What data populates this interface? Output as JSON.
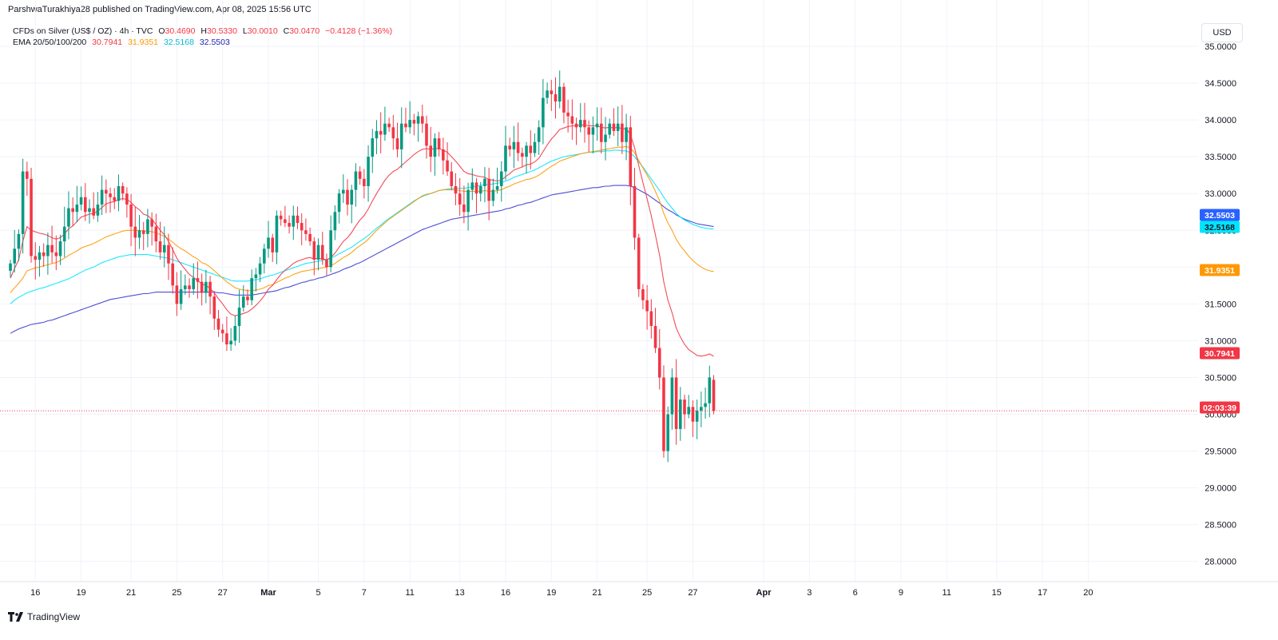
{
  "header": {
    "published_line": "ParshwaTurakhiya28 published on TradingView.com, Apr 08, 2025 15:56 UTC"
  },
  "legend": {
    "symbol": "CFDs on Silver (US$ / OZ) · 4h · TVC",
    "o_label": "O",
    "o_value": "30.4690",
    "h_label": "H",
    "h_value": "30.5330",
    "l_label": "L",
    "l_value": "30.0010",
    "c_label": "C",
    "c_value": "30.0470",
    "change": "−0.4128 (−1.36%)",
    "ema_label": "EMA 20/50/100/200",
    "ema20": "30.7941",
    "ema50": "31.9351",
    "ema100": "32.5168",
    "ema200": "32.5503"
  },
  "currency": "USD",
  "brand": {
    "name": "TradingView"
  },
  "colors": {
    "up": "#089981",
    "down": "#f23645",
    "ema20": "#f23645",
    "ema50": "#ff9800",
    "ema100": "#00e5ff",
    "ema200": "#3b3bd1",
    "grid": "#f0f3fa",
    "text": "#131722"
  },
  "chart_data": {
    "type": "candlestick",
    "title": "CFDs on Silver (US$ / OZ) · 4h · TVC",
    "ylim": [
      27.8,
      35.1
    ],
    "y_ticks": [
      "35.0000",
      "34.5000",
      "34.0000",
      "33.5000",
      "33.0000",
      "32.5000",
      "32.0000",
      "31.5000",
      "31.0000",
      "30.5000",
      "30.0000",
      "29.5000",
      "29.0000",
      "28.5000",
      "28.0000"
    ],
    "x_ticks": [
      {
        "label": "16",
        "i": 6
      },
      {
        "label": "19",
        "i": 17
      },
      {
        "label": "21",
        "i": 29
      },
      {
        "label": "25",
        "i": 40
      },
      {
        "label": "27",
        "i": 51
      },
      {
        "label": "Mar",
        "i": 62
      },
      {
        "label": "5",
        "i": 74
      },
      {
        "label": "7",
        "i": 85
      },
      {
        "label": "11",
        "i": 96
      },
      {
        "label": "13",
        "i": 108
      },
      {
        "label": "16",
        "i": 119
      },
      {
        "label": "19",
        "i": 130
      },
      {
        "label": "21",
        "i": 141
      },
      {
        "label": "25",
        "i": 153
      },
      {
        "label": "27",
        "i": 164
      },
      {
        "label": "Apr",
        "i": 181
      },
      {
        "label": "3",
        "i": 192
      },
      {
        "label": "6",
        "i": 203
      },
      {
        "label": "9",
        "i": 214
      },
      {
        "label": "11",
        "i": 225
      },
      {
        "label": "15",
        "i": 237
      },
      {
        "label": "17",
        "i": 248
      },
      {
        "label": "20",
        "i": 259
      }
    ],
    "price_scale_badges": [
      {
        "label": "32.5503",
        "value": 32.5503,
        "color": "#2962ff"
      },
      {
        "label": "32.5168",
        "value": 32.5168,
        "color": "#00e5ff"
      },
      {
        "label": "31.9351",
        "value": 31.9351,
        "color": "#ff9800"
      },
      {
        "label": "30.7941",
        "value": 30.7941,
        "color": "#f23645"
      },
      {
        "label": "02:03:39",
        "value": 30.047,
        "color": "#f23645"
      }
    ],
    "last_price": 30.047,
    "series": [
      {
        "name": "Silver 4h OHLC",
        "kind": "ohlc"
      },
      {
        "name": "EMA 20",
        "kind": "line",
        "color": "#f23645"
      },
      {
        "name": "EMA 50",
        "kind": "line",
        "color": "#ff9800"
      },
      {
        "name": "EMA 100",
        "kind": "line",
        "color": "#00e5ff"
      },
      {
        "name": "EMA 200",
        "kind": "line",
        "color": "#3b3bd1"
      }
    ],
    "closes": [
      32.05,
      32.25,
      32.45,
      33.3,
      33.2,
      32.15,
      32.1,
      32.2,
      32.15,
      32.3,
      32.2,
      32.15,
      32.35,
      32.55,
      32.8,
      32.75,
      32.85,
      32.95,
      32.75,
      32.8,
      32.7,
      32.85,
      33.05,
      33.0,
      32.95,
      32.9,
      33.1,
      33.0,
      32.85,
      32.55,
      32.4,
      32.5,
      32.45,
      32.65,
      32.55,
      32.35,
      32.2,
      32.3,
      32.05,
      31.75,
      31.5,
      31.7,
      31.75,
      31.7,
      31.85,
      31.8,
      31.65,
      31.8,
      31.6,
      31.3,
      31.15,
      31.1,
      30.95,
      31.0,
      31.2,
      31.45,
      31.6,
      31.55,
      31.85,
      31.9,
      32.05,
      32.25,
      32.4,
      32.2,
      32.7,
      32.65,
      32.6,
      32.55,
      32.7,
      32.6,
      32.5,
      32.45,
      32.35,
      32.1,
      32.3,
      32.1,
      32.0,
      32.5,
      32.75,
      33.0,
      33.05,
      32.85,
      33.05,
      33.3,
      33.2,
      33.1,
      33.5,
      33.75,
      33.85,
      33.8,
      33.95,
      33.9,
      33.75,
      33.6,
      33.95,
      33.9,
      34.0,
      33.95,
      34.05,
      33.95,
      33.65,
      33.5,
      33.75,
      33.6,
      33.45,
      33.3,
      33.1,
      33.0,
      32.85,
      32.75,
      33.05,
      33.15,
      33.0,
      33.1,
      33.2,
      32.9,
      33.05,
      33.1,
      33.3,
      33.65,
      33.6,
      33.7,
      33.55,
      33.5,
      33.65,
      33.55,
      33.7,
      33.9,
      34.3,
      34.4,
      34.35,
      34.25,
      34.45,
      34.1,
      34.05,
      33.95,
      33.9,
      34.0,
      33.9,
      33.8,
      33.9,
      33.95,
      33.7,
      33.8,
      33.95,
      33.85,
      33.95,
      33.7,
      33.9,
      33.1,
      32.4,
      31.7,
      31.55,
      31.4,
      31.2,
      30.9,
      30.5,
      29.5,
      30.0,
      30.5,
      29.8,
      30.2,
      30.0,
      30.1,
      29.9,
      30.05,
      30.1,
      30.15,
      30.5,
      30.05
    ],
    "ema20": [
      31.85,
      31.98,
      32.1,
      32.35,
      32.55,
      32.5,
      32.48,
      32.46,
      32.45,
      32.43,
      32.4,
      32.38,
      32.4,
      32.45,
      32.52,
      32.56,
      32.62,
      32.68,
      32.7,
      32.72,
      32.73,
      32.76,
      32.81,
      32.86,
      32.88,
      32.89,
      32.92,
      32.93,
      32.92,
      32.88,
      32.82,
      32.78,
      32.72,
      32.7,
      32.65,
      32.58,
      32.5,
      32.44,
      32.35,
      32.24,
      32.12,
      32.04,
      31.97,
      31.9,
      31.86,
      31.82,
      31.77,
      31.75,
      31.71,
      31.65,
      31.57,
      31.5,
      31.42,
      31.36,
      31.34,
      31.35,
      31.37,
      31.39,
      31.43,
      31.48,
      31.54,
      31.61,
      31.7,
      31.75,
      31.83,
      31.9,
      31.96,
      32.0,
      32.05,
      32.08,
      32.1,
      32.12,
      32.13,
      32.11,
      32.12,
      32.11,
      32.1,
      32.13,
      32.19,
      32.27,
      32.35,
      32.4,
      32.47,
      32.56,
      32.64,
      32.7,
      32.79,
      32.9,
      33.0,
      33.09,
      33.18,
      33.25,
      33.3,
      33.33,
      33.38,
      33.43,
      33.48,
      33.53,
      33.57,
      33.6,
      33.61,
      33.6,
      33.61,
      33.61,
      33.59,
      33.56,
      33.5,
      33.44,
      33.37,
      33.3,
      33.27,
      33.26,
      33.24,
      33.23,
      33.22,
      33.19,
      33.18,
      33.17,
      33.18,
      33.23,
      33.27,
      33.32,
      33.34,
      33.36,
      33.39,
      33.4,
      33.43,
      33.48,
      33.57,
      33.66,
      33.74,
      33.8,
      33.87,
      33.89,
      33.91,
      33.92,
      33.92,
      33.93,
      33.93,
      33.92,
      33.92,
      33.92,
      33.9,
      33.89,
      33.9,
      33.89,
      33.9,
      33.88,
      33.88,
      33.8,
      33.62,
      33.38,
      33.15,
      32.93,
      32.7,
      32.44,
      32.16,
      31.8,
      31.55,
      31.38,
      31.17,
      31.05,
      30.95,
      30.88,
      30.84,
      30.8,
      30.79,
      30.8,
      30.82,
      30.79
    ],
    "ema50": [
      31.65,
      31.72,
      31.78,
      31.85,
      31.95,
      31.97,
      31.99,
      32.0,
      32.02,
      32.03,
      32.05,
      32.06,
      32.09,
      32.12,
      32.16,
      32.19,
      32.22,
      32.26,
      32.28,
      32.3,
      32.32,
      32.35,
      32.38,
      32.41,
      32.43,
      32.45,
      32.47,
      32.49,
      32.5,
      32.5,
      32.5,
      32.5,
      32.49,
      32.49,
      32.48,
      32.47,
      32.44,
      32.42,
      32.38,
      32.34,
      32.29,
      32.25,
      32.22,
      32.18,
      32.14,
      32.11,
      32.06,
      32.04,
      32.0,
      31.95,
      31.9,
      31.85,
      31.8,
      31.76,
      31.72,
      31.7,
      31.69,
      31.68,
      31.68,
      31.69,
      31.7,
      31.72,
      31.75,
      31.76,
      31.79,
      31.82,
      31.85,
      31.87,
      31.9,
      31.92,
      31.94,
      31.95,
      31.96,
      31.97,
      31.98,
      31.99,
      32.0,
      32.02,
      32.05,
      32.09,
      32.13,
      32.16,
      32.2,
      32.25,
      32.29,
      32.33,
      32.38,
      32.44,
      32.5,
      32.55,
      32.6,
      32.65,
      32.69,
      32.73,
      32.77,
      32.81,
      32.85,
      32.89,
      32.93,
      32.97,
      32.99,
      33.0,
      33.02,
      33.04,
      33.05,
      33.05,
      33.05,
      33.05,
      33.04,
      33.03,
      33.03,
      33.03,
      33.03,
      33.03,
      33.04,
      33.03,
      33.03,
      33.04,
      33.05,
      33.08,
      33.1,
      33.13,
      33.15,
      33.17,
      33.19,
      33.2,
      33.22,
      33.25,
      33.29,
      33.33,
      33.37,
      33.4,
      33.44,
      33.46,
      33.48,
      33.5,
      33.52,
      33.54,
      33.55,
      33.56,
      33.57,
      33.58,
      33.59,
      33.6,
      33.61,
      33.62,
      33.63,
      33.63,
      33.64,
      33.62,
      33.55,
      33.45,
      33.35,
      33.25,
      33.15,
      33.03,
      32.9,
      32.73,
      32.6,
      32.5,
      32.38,
      32.29,
      32.22,
      32.15,
      32.09,
      32.04,
      32.0,
      31.97,
      31.95,
      31.94
    ],
    "ema100": [
      31.5,
      31.55,
      31.59,
      31.62,
      31.65,
      31.67,
      31.69,
      31.71,
      31.72,
      31.74,
      31.76,
      31.78,
      31.8,
      31.82,
      31.84,
      31.87,
      31.9,
      31.93,
      31.96,
      31.98,
      32.0,
      32.03,
      32.06,
      32.08,
      32.1,
      32.12,
      32.14,
      32.15,
      32.16,
      32.17,
      32.17,
      32.17,
      32.17,
      32.17,
      32.16,
      32.15,
      32.14,
      32.13,
      32.12,
      32.1,
      32.08,
      32.06,
      32.04,
      32.02,
      32.0,
      31.98,
      31.96,
      31.94,
      31.92,
      31.9,
      31.88,
      31.86,
      31.84,
      31.82,
      31.81,
      31.81,
      31.81,
      31.81,
      31.82,
      31.83,
      31.84,
      31.86,
      31.88,
      31.89,
      31.91,
      31.93,
      31.95,
      31.97,
      31.99,
      32.01,
      32.03,
      32.05,
      32.06,
      32.07,
      32.08,
      32.09,
      32.1,
      32.12,
      32.15,
      32.18,
      32.21,
      32.24,
      32.27,
      32.31,
      32.35,
      32.39,
      32.43,
      32.48,
      32.53,
      32.57,
      32.62,
      32.66,
      32.7,
      32.74,
      32.78,
      32.82,
      32.86,
      32.9,
      32.93,
      32.96,
      32.98,
      33.0,
      33.02,
      33.04,
      33.05,
      33.06,
      33.07,
      33.07,
      33.07,
      33.07,
      33.08,
      33.09,
      33.1,
      33.11,
      33.12,
      33.12,
      33.13,
      33.14,
      33.15,
      33.17,
      33.19,
      33.22,
      33.24,
      33.26,
      33.28,
      33.3,
      33.32,
      33.35,
      33.38,
      33.41,
      33.44,
      33.46,
      33.48,
      33.5,
      33.51,
      33.52,
      33.53,
      33.54,
      33.55,
      33.56,
      33.56,
      33.57,
      33.57,
      33.58,
      33.58,
      33.59,
      33.59,
      33.58,
      33.58,
      33.55,
      33.5,
      33.43,
      33.36,
      33.28,
      33.2,
      33.12,
      33.04,
      32.95,
      32.87,
      32.8,
      32.73,
      32.68,
      32.64,
      32.61,
      32.58,
      32.56,
      32.54,
      32.53,
      32.52,
      32.52
    ],
    "ema200": [
      31.1,
      31.13,
      31.16,
      31.18,
      31.2,
      31.22,
      31.23,
      31.24,
      31.25,
      31.27,
      31.28,
      31.3,
      31.32,
      31.34,
      31.36,
      31.38,
      31.4,
      31.42,
      31.44,
      31.46,
      31.48,
      31.5,
      31.52,
      31.54,
      31.56,
      31.57,
      31.58,
      31.59,
      31.6,
      31.61,
      31.62,
      31.63,
      31.64,
      31.64,
      31.65,
      31.66,
      31.66,
      31.66,
      31.66,
      31.66,
      31.66,
      31.66,
      31.66,
      31.66,
      31.66,
      31.66,
      31.66,
      31.66,
      31.66,
      31.66,
      31.65,
      31.65,
      31.64,
      31.63,
      31.62,
      31.62,
      31.62,
      31.62,
      31.62,
      31.63,
      31.64,
      31.65,
      31.66,
      31.67,
      31.68,
      31.7,
      31.72,
      31.73,
      31.75,
      31.77,
      31.79,
      31.8,
      31.82,
      31.83,
      31.85,
      31.86,
      31.88,
      31.9,
      31.92,
      31.94,
      31.97,
      31.99,
      32.01,
      32.04,
      32.06,
      32.09,
      32.12,
      32.15,
      32.18,
      32.21,
      32.24,
      32.27,
      32.3,
      32.33,
      32.36,
      32.39,
      32.42,
      32.45,
      32.48,
      32.51,
      32.53,
      32.55,
      32.57,
      32.59,
      32.61,
      32.63,
      32.65,
      32.66,
      32.67,
      32.68,
      32.69,
      32.7,
      32.71,
      32.72,
      32.73,
      32.74,
      32.75,
      32.76,
      32.77,
      32.79,
      32.8,
      32.82,
      32.84,
      32.85,
      32.87,
      32.88,
      32.9,
      32.92,
      32.94,
      32.96,
      32.98,
      32.99,
      33.0,
      33.01,
      33.02,
      33.03,
      33.04,
      33.05,
      33.06,
      33.07,
      33.08,
      33.08,
      33.09,
      33.1,
      33.1,
      33.11,
      33.11,
      33.11,
      33.11,
      33.1,
      33.08,
      33.05,
      33.02,
      32.99,
      32.95,
      32.91,
      32.87,
      32.82,
      32.78,
      32.75,
      32.71,
      32.68,
      32.65,
      32.63,
      32.61,
      32.59,
      32.58,
      32.57,
      32.56,
      32.55
    ]
  }
}
